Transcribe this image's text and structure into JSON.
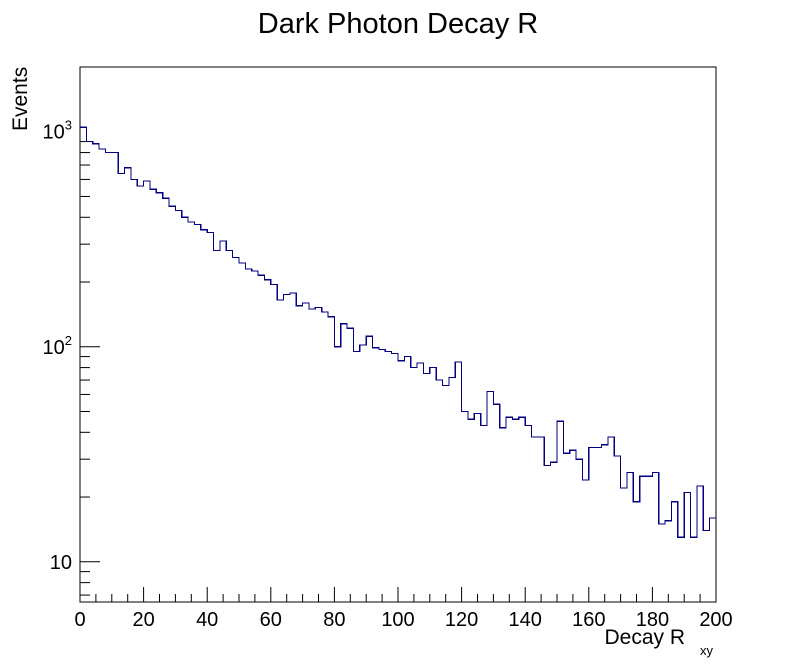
{
  "chart_data": {
    "type": "histogram",
    "title": "Dark Photon Decay R",
    "xlabel": "Decay R",
    "xlabel_subscript": "xy",
    "ylabel": "Events",
    "xlim": [
      0,
      200
    ],
    "ylim": [
      6.5,
      2000
    ],
    "yscale": "log",
    "bin_width": 2,
    "x_tick_labels": [
      "0",
      "20",
      "40",
      "60",
      "80",
      "100",
      "120",
      "140",
      "160",
      "180",
      "200"
    ],
    "y_tick_labels": [
      {
        "value": 10,
        "base": "10",
        "exp": ""
      },
      {
        "value": 100,
        "base": "10",
        "exp": "2"
      },
      {
        "value": 1000,
        "base": "10",
        "exp": "3"
      }
    ],
    "series": [
      {
        "name": "Decay R_xy",
        "color": "#000080",
        "values": [
          1050,
          900,
          880,
          830,
          800,
          800,
          640,
          680,
          600,
          560,
          590,
          540,
          520,
          490,
          450,
          430,
          400,
          380,
          370,
          350,
          340,
          280,
          310,
          280,
          260,
          245,
          230,
          225,
          215,
          205,
          195,
          165,
          175,
          178,
          155,
          160,
          150,
          152,
          145,
          138,
          100,
          128,
          122,
          95,
          102,
          112,
          99,
          97,
          95,
          93,
          86,
          90,
          80,
          84,
          75,
          80,
          70,
          66,
          72,
          85,
          50,
          46,
          49,
          43,
          62,
          54,
          42,
          47,
          46,
          47,
          43,
          38,
          38,
          28,
          29,
          45,
          32,
          33,
          30,
          24,
          34,
          34,
          35,
          38,
          31,
          22,
          26,
          19,
          25,
          25,
          26,
          15,
          15.5,
          19,
          13,
          21,
          13,
          22.5,
          14,
          16
        ]
      }
    ]
  }
}
